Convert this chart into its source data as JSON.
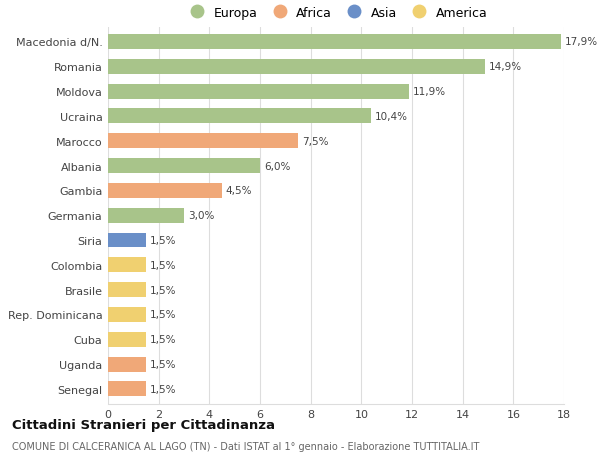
{
  "categories": [
    "Macedonia d/N.",
    "Romania",
    "Moldova",
    "Ucraina",
    "Marocco",
    "Albania",
    "Gambia",
    "Germania",
    "Siria",
    "Colombia",
    "Brasile",
    "Rep. Dominicana",
    "Cuba",
    "Uganda",
    "Senegal"
  ],
  "values": [
    17.9,
    14.9,
    11.9,
    10.4,
    7.5,
    6.0,
    4.5,
    3.0,
    1.5,
    1.5,
    1.5,
    1.5,
    1.5,
    1.5,
    1.5
  ],
  "labels": [
    "17,9%",
    "14,9%",
    "11,9%",
    "10,4%",
    "7,5%",
    "6,0%",
    "4,5%",
    "3,0%",
    "1,5%",
    "1,5%",
    "1,5%",
    "1,5%",
    "1,5%",
    "1,5%",
    "1,5%"
  ],
  "colors": [
    "#a8c48a",
    "#a8c48a",
    "#a8c48a",
    "#a8c48a",
    "#f0a878",
    "#a8c48a",
    "#f0a878",
    "#a8c48a",
    "#6a8fc8",
    "#f0d070",
    "#f0d070",
    "#f0d070",
    "#f0d070",
    "#f0a878",
    "#f0a878"
  ],
  "legend_labels": [
    "Europa",
    "Africa",
    "Asia",
    "America"
  ],
  "legend_colors": [
    "#a8c48a",
    "#f0a878",
    "#6a8fc8",
    "#f0d070"
  ],
  "title": "Cittadini Stranieri per Cittadinanza",
  "subtitle": "COMUNE DI CALCERANICA AL LAGO (TN) - Dati ISTAT al 1° gennaio - Elaborazione TUTTITALIA.IT",
  "xlim": [
    0,
    18
  ],
  "xticks": [
    0,
    2,
    4,
    6,
    8,
    10,
    12,
    14,
    16,
    18
  ],
  "background_color": "#ffffff",
  "grid_color": "#dddddd",
  "bar_height": 0.6
}
